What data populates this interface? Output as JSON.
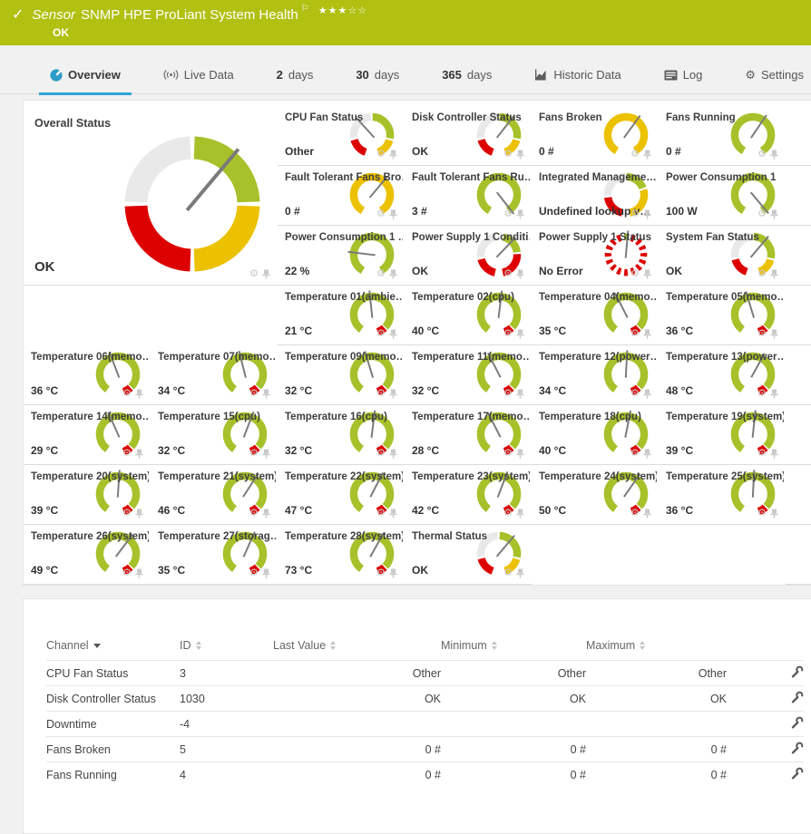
{
  "colors": {
    "header_bg": "#b1c011",
    "green": "#a7c12a",
    "yellow": "#ecc100",
    "red": "#dd0000",
    "gray": "#e9e9e9",
    "needle": "#7a7a7a",
    "tab_underline": "#2da4d8",
    "tab_icon_blue": "#2d9cc9"
  },
  "header": {
    "check_icon": "✓",
    "kind_label": "Sensor",
    "title": "SNMP HPE ProLiant System Health",
    "flag_icon": "⚐",
    "stars": [
      "filled",
      "filled",
      "filled",
      "empty",
      "empty"
    ],
    "status_text": "OK"
  },
  "tabs": [
    {
      "id": "overview",
      "label": "Overview",
      "icon": "gauge-icon",
      "active": true
    },
    {
      "id": "live-data",
      "label": "Live Data",
      "icon": "live-data-icon",
      "active": false
    },
    {
      "id": "2-days",
      "number": "2",
      "label": "days",
      "active": false
    },
    {
      "id": "30-days",
      "number": "30",
      "label": "days",
      "active": false
    },
    {
      "id": "365-days",
      "number": "365",
      "label": "days",
      "active": false
    },
    {
      "id": "historic-data",
      "label": "Historic Data",
      "icon": "historic-data-icon",
      "active": false
    },
    {
      "id": "log",
      "label": "Log",
      "icon": "log-icon",
      "active": false
    },
    {
      "id": "settings",
      "label": "Settings",
      "icon": "settings-gear-icon",
      "active": false
    }
  ],
  "overall_gauge": {
    "title": "Overall Status",
    "value": "OK",
    "kind": "overall",
    "needle": 40
  },
  "gauges": [
    {
      "title": "CPU Fan Status",
      "value": "Other",
      "kind": "status",
      "needle": -42
    },
    {
      "title": "Disk Controller Status",
      "value": "OK",
      "kind": "status",
      "needle": 38
    },
    {
      "title": "Fans Broken",
      "value": "0 #",
      "kind": "yellow",
      "needle": 36
    },
    {
      "title": "Fans Running",
      "value": "0 #",
      "kind": "green",
      "needle": 34
    },
    {
      "title": "Fault Tolerant Fans Bro…",
      "value": "0 #",
      "kind": "yellow",
      "needle": 40
    },
    {
      "title": "Fault Tolerant Fans Ru…",
      "value": "3 #",
      "kind": "green",
      "needle": 142
    },
    {
      "title": "Integrated Manageme…",
      "value": "Undefined lookup v…",
      "kind": "imgmt",
      "needle": null
    },
    {
      "title": "Power Consumption 1",
      "value": "100 W",
      "kind": "green",
      "needle": 140
    },
    {
      "title": "Power Consumption 1 …",
      "value": "22 %",
      "kind": "green",
      "needle": -83
    },
    {
      "title": "Power Supply 1 Conditi…",
      "value": "OK",
      "kind": "condition",
      "needle": 44
    },
    {
      "title": "Power Supply 1 Status",
      "value": "No Error",
      "kind": "dashed",
      "needle": 5
    },
    {
      "title": "System Fan Status",
      "value": "OK",
      "kind": "status",
      "needle": 40
    },
    {
      "title": "Temperature 01(ambie…",
      "value": "21 °C",
      "kind": "temp",
      "needle": -6
    },
    {
      "title": "Temperature 02(cpu)",
      "value": "40 °C",
      "kind": "temp",
      "needle": 7
    },
    {
      "title": "Temperature 04(memo…",
      "value": "35 °C",
      "kind": "temp",
      "needle": -27
    },
    {
      "title": "Temperature 05(memo…",
      "value": "36 °C",
      "kind": "temp",
      "needle": -17
    },
    {
      "title": "Temperature 06(memo…",
      "value": "36 °C",
      "kind": "temp",
      "needle": -21
    },
    {
      "title": "Temperature 07(memo…",
      "value": "34 °C",
      "kind": "temp",
      "needle": -14
    },
    {
      "title": "Temperature 09(memo…",
      "value": "32 °C",
      "kind": "temp",
      "needle": -17
    },
    {
      "title": "Temperature 11(memo…",
      "value": "32 °C",
      "kind": "temp",
      "needle": -27
    },
    {
      "title": "Temperature 12(power…",
      "value": "34 °C",
      "kind": "temp",
      "needle": 3
    },
    {
      "title": "Temperature 13(power…",
      "value": "48 °C",
      "kind": "temp",
      "needle": 29
    },
    {
      "title": "Temperature 14(memo…",
      "value": "29 °C",
      "kind": "temp",
      "needle": -24
    },
    {
      "title": "Temperature 15(cpu)",
      "value": "32 °C",
      "kind": "temp",
      "needle": 21
    },
    {
      "title": "Temperature 16(cpu)",
      "value": "32 °C",
      "kind": "temp",
      "needle": 7
    },
    {
      "title": "Temperature 17(memo…",
      "value": "28 °C",
      "kind": "temp",
      "needle": -27
    },
    {
      "title": "Temperature 18(cpu)",
      "value": "40 °C",
      "kind": "temp",
      "needle": 11
    },
    {
      "title": "Temperature 19(system)",
      "value": "39 °C",
      "kind": "temp",
      "needle": 6
    },
    {
      "title": "Temperature 20(system)",
      "value": "39 °C",
      "kind": "temp",
      "needle": 4
    },
    {
      "title": "Temperature 21(system)",
      "value": "46 °C",
      "kind": "temp",
      "needle": 33
    },
    {
      "title": "Temperature 22(system)",
      "value": "47 °C",
      "kind": "temp",
      "needle": 27
    },
    {
      "title": "Temperature 23(system)",
      "value": "42 °C",
      "kind": "temp",
      "needle": 21
    },
    {
      "title": "Temperature 24(system)",
      "value": "50 °C",
      "kind": "temp",
      "needle": 35
    },
    {
      "title": "Temperature 25(system)",
      "value": "36 °C",
      "kind": "temp",
      "needle": 3
    },
    {
      "title": "Temperature 26(system)",
      "value": "49 °C",
      "kind": "temp",
      "needle": 37
    },
    {
      "title": "Temperature 27(storag…",
      "value": "35 °C",
      "kind": "temp",
      "needle": 24
    },
    {
      "title": "Temperature 28(system)",
      "value": "73 °C",
      "kind": "temp",
      "needle": 29
    },
    {
      "title": "Thermal Status",
      "value": "OK",
      "kind": "status",
      "needle": 40
    }
  ],
  "channels_table": {
    "headers": [
      {
        "label": "Channel",
        "sort": "desc"
      },
      {
        "label": "ID",
        "sort": "both"
      },
      {
        "label": "Last Value",
        "sort": "both"
      },
      {
        "label": "Minimum",
        "sort": "both"
      },
      {
        "label": "Maximum",
        "sort": "both"
      }
    ],
    "rows": [
      {
        "channel": "CPU Fan Status",
        "id": "3",
        "last": "Other",
        "min": "Other",
        "max": "Other"
      },
      {
        "channel": "Disk Controller Status",
        "id": "1030",
        "last": "OK",
        "min": "OK",
        "max": "OK"
      },
      {
        "channel": "Downtime",
        "id": "-4",
        "last": "",
        "min": "",
        "max": ""
      },
      {
        "channel": "Fans Broken",
        "id": "5",
        "last": "0 #",
        "min": "0 #",
        "max": "0 #"
      },
      {
        "channel": "Fans Running",
        "id": "4",
        "last": "0 #",
        "min": "0 #",
        "max": "0 #"
      }
    ]
  }
}
